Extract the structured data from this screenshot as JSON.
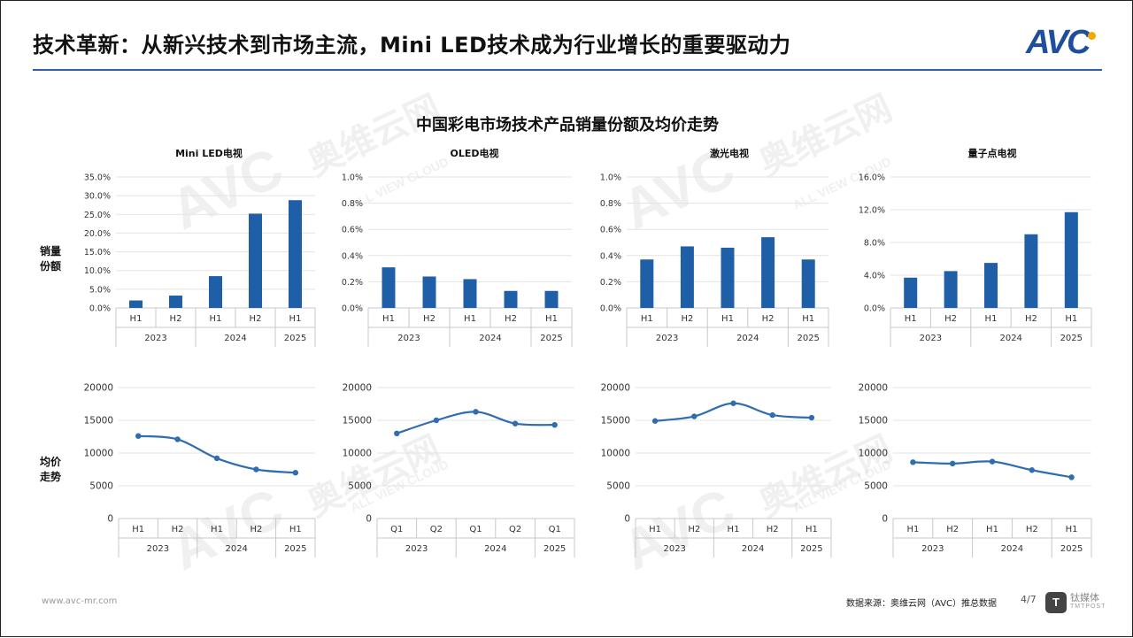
{
  "header": {
    "title": "技术革新：从新兴技术到市场主流，Mini LED技术成为行业增长的重要驱动力",
    "logo_text": "AVC"
  },
  "colors": {
    "bar": "#1f5fa8",
    "line": "#2f6cb0",
    "axis": "#c8c8c8",
    "grid": "#e3e3e3",
    "text": "#333333"
  },
  "main_title": "中国彩电市场技术产品销量份额及均价走势",
  "row_labels": {
    "share": "销量\n份额",
    "price": "均价\n走势"
  },
  "watermark": {
    "brand": "奥维云网",
    "sub": "ALL VIEW CLOUD",
    "logo": "AVC"
  },
  "chart_data": [
    {
      "type": "bar",
      "panel": "Mini LED电视",
      "metric": "销量份额",
      "ticks": [
        "0.0%",
        "5.0%",
        "10.0%",
        "15.0%",
        "20.0%",
        "25.0%",
        "30.0%",
        "35.0%"
      ],
      "ylim": [
        0,
        35
      ],
      "categories": [
        "H1",
        "H2",
        "H1",
        "H2",
        "H1"
      ],
      "groups": [
        {
          "label": "2023",
          "span": 2
        },
        {
          "label": "2024",
          "span": 2
        },
        {
          "label": "2025",
          "span": 1
        }
      ],
      "values": [
        2.0,
        3.3,
        8.5,
        25.2,
        28.8
      ]
    },
    {
      "type": "bar",
      "panel": "OLED电视",
      "metric": "销量份额",
      "ticks": [
        "0.0%",
        "0.2%",
        "0.4%",
        "0.6%",
        "0.8%",
        "1.0%"
      ],
      "ylim": [
        0,
        1.0
      ],
      "categories": [
        "H1",
        "H2",
        "H1",
        "H2",
        "H1"
      ],
      "groups": [
        {
          "label": "2023",
          "span": 2
        },
        {
          "label": "2024",
          "span": 2
        },
        {
          "label": "2025",
          "span": 1
        }
      ],
      "values": [
        0.31,
        0.24,
        0.22,
        0.13,
        0.13
      ]
    },
    {
      "type": "bar",
      "panel": "激光电视",
      "metric": "销量份额",
      "ticks": [
        "0.0%",
        "0.2%",
        "0.4%",
        "0.6%",
        "0.8%",
        "1.0%"
      ],
      "ylim": [
        0,
        1.0
      ],
      "categories": [
        "H1",
        "H2",
        "H1",
        "H2",
        "H1"
      ],
      "groups": [
        {
          "label": "2023",
          "span": 2
        },
        {
          "label": "2024",
          "span": 2
        },
        {
          "label": "2025",
          "span": 1
        }
      ],
      "values": [
        0.37,
        0.47,
        0.46,
        0.54,
        0.37
      ]
    },
    {
      "type": "bar",
      "panel": "量子点电视",
      "metric": "销量份额",
      "ticks": [
        "0.0%",
        "4.0%",
        "8.0%",
        "12.0%",
        "16.0%"
      ],
      "ylim": [
        0,
        16
      ],
      "categories": [
        "H1",
        "H2",
        "H1",
        "H2",
        "H1"
      ],
      "groups": [
        {
          "label": "2023",
          "span": 2
        },
        {
          "label": "2024",
          "span": 2
        },
        {
          "label": "2025",
          "span": 1
        }
      ],
      "values": [
        3.7,
        4.5,
        5.5,
        9.0,
        11.7
      ]
    },
    {
      "type": "line",
      "panel": "Mini LED电视",
      "metric": "均价",
      "ticks": [
        "0",
        "5000",
        "10000",
        "15000",
        "20000"
      ],
      "ylim": [
        0,
        20000
      ],
      "categories": [
        "H1",
        "H2",
        "H1",
        "H2",
        "H1"
      ],
      "groups": [
        {
          "label": "2023",
          "span": 2
        },
        {
          "label": "2024",
          "span": 2
        },
        {
          "label": "2025",
          "span": 1
        }
      ],
      "values": [
        12600,
        12100,
        9200,
        7500,
        7000
      ]
    },
    {
      "type": "line",
      "panel": "OLED电视",
      "metric": "均价",
      "ticks": [
        "0",
        "5000",
        "10000",
        "15000",
        "20000"
      ],
      "ylim": [
        0,
        20000
      ],
      "categories": [
        "Q1",
        "Q2",
        "Q1",
        "Q2",
        "Q1"
      ],
      "groups": [
        {
          "label": "2023",
          "span": 2
        },
        {
          "label": "2024",
          "span": 2
        },
        {
          "label": "2025",
          "span": 1
        }
      ],
      "values": [
        13000,
        15000,
        16300,
        14500,
        14300
      ]
    },
    {
      "type": "line",
      "panel": "激光电视",
      "metric": "均价",
      "ticks": [
        "0",
        "5000",
        "10000",
        "15000",
        "20000"
      ],
      "ylim": [
        0,
        20000
      ],
      "categories": [
        "H1",
        "H2",
        "H1",
        "H2",
        "H1"
      ],
      "groups": [
        {
          "label": "2023",
          "span": 2
        },
        {
          "label": "2024",
          "span": 2
        },
        {
          "label": "2025",
          "span": 1
        }
      ],
      "values": [
        14900,
        15600,
        17600,
        15800,
        15400
      ]
    },
    {
      "type": "line",
      "panel": "量子点电视",
      "metric": "均价",
      "ticks": [
        "0",
        "5000",
        "10000",
        "15000",
        "20000"
      ],
      "ylim": [
        0,
        20000
      ],
      "categories": [
        "H1",
        "H2",
        "H1",
        "H2",
        "H1"
      ],
      "groups": [
        {
          "label": "2023",
          "span": 2
        },
        {
          "label": "2024",
          "span": 2
        },
        {
          "label": "2025",
          "span": 1
        }
      ],
      "values": [
        8600,
        8400,
        8700,
        7400,
        6300
      ]
    }
  ],
  "footer": {
    "url": "www.avc-mr.com",
    "source": "数据来源：奥维云网（AVC）推总数据",
    "page": "4/7",
    "tmt_logo": "T",
    "tmt_name": "钛媒体",
    "tmt_sub": "TMTPOST"
  }
}
